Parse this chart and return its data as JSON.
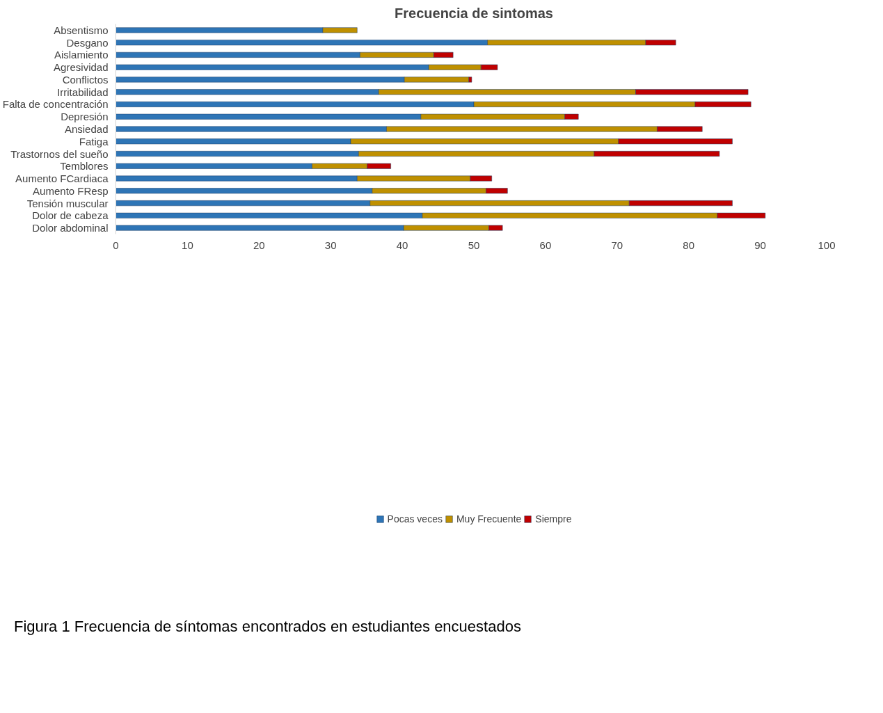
{
  "chart_data": {
    "type": "bar",
    "orientation": "horizontal",
    "stacked": true,
    "title": "Frecuencia de sintomas",
    "categories": [
      "Absentismo",
      "Desgano",
      "Aislamiento",
      "Agresividad",
      "Conflictos",
      "Irritabilidad",
      "Falta de concentración",
      "Depresión",
      "Ansiedad",
      "Fatiga",
      "Trastornos del sueño",
      "Temblores",
      "Aumento FCardiaca",
      "Aumento FResp",
      "Tensión muscular",
      "Dolor de cabeza",
      "Dolor abdominal"
    ],
    "series": [
      {
        "name": "Pocas veces",
        "color": "#2e75b6",
        "values": [
          28.9,
          51.9,
          34.1,
          43.7,
          40.3,
          36.7,
          50.0,
          42.6,
          37.8,
          32.8,
          33.9,
          27.4,
          33.7,
          35.8,
          35.5,
          42.8,
          40.2
        ]
      },
      {
        "name": "Muy Frecuente",
        "color": "#bf9000",
        "values": [
          4.8,
          22.1,
          10.3,
          7.3,
          9.0,
          35.9,
          30.9,
          20.1,
          37.8,
          37.4,
          32.9,
          7.7,
          15.8,
          15.9,
          36.2,
          41.2,
          11.9
        ]
      },
      {
        "name": "Siempre",
        "color": "#c00000",
        "values": [
          null,
          4.2,
          2.7,
          2.3,
          0.4,
          15.7,
          7.8,
          1.9,
          6.3,
          15.9,
          17.5,
          3.3,
          3.0,
          3.0,
          14.4,
          6.7,
          1.9
        ]
      }
    ],
    "xlim": [
      0,
      100
    ],
    "xticks": [
      0,
      10,
      20,
      30,
      40,
      50,
      60,
      70,
      80,
      90,
      100
    ],
    "grid": false,
    "legend": "bottom",
    "annotations": [
      "Figura 1 Frecuencia de síntomas encontrados en estudiantes encuestados"
    ]
  }
}
